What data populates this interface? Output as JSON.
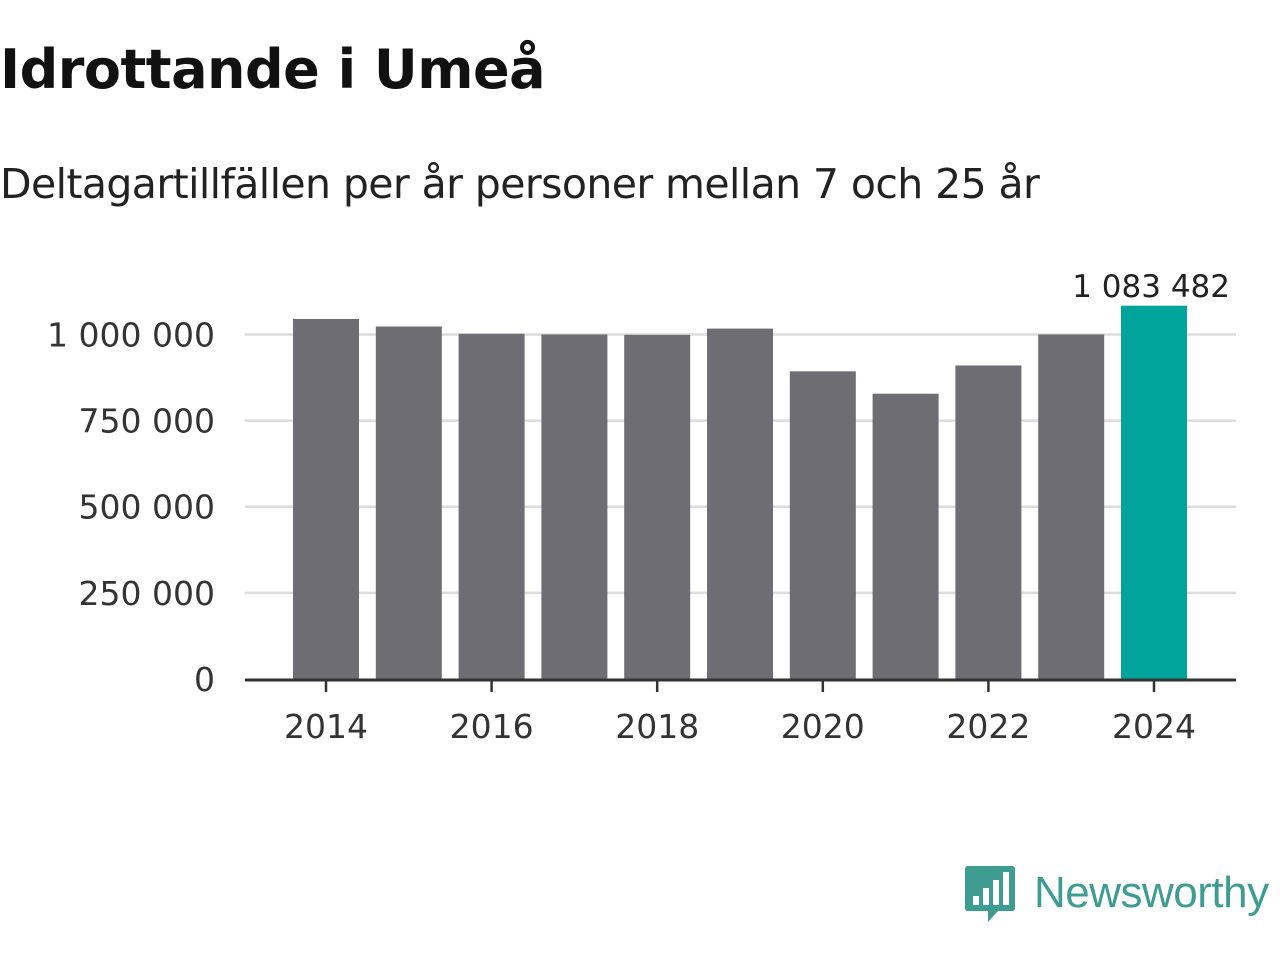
{
  "title": "Idrottande i Umeå",
  "subtitle": "Deltagartillfällen per år personer mellan 7 och 25 år",
  "brand": {
    "name": "Newsworthy",
    "icon": "bar-chart-speech-bubble-icon",
    "color": "#3e9c91"
  },
  "chart_data": {
    "type": "bar",
    "title": "Idrottande i Umeå",
    "subtitle": "Deltagartillfällen per år personer mellan 7 och 25 år",
    "categories": [
      "2014",
      "2015",
      "2016",
      "2017",
      "2018",
      "2019",
      "2020",
      "2021",
      "2022",
      "2023",
      "2024"
    ],
    "values": [
      1045000,
      1023000,
      1002000,
      1000000,
      999000,
      1017000,
      893000,
      828000,
      910000,
      1000000,
      1083482
    ],
    "bar_color": "#6e6d73",
    "highlight_color": "#00a49a",
    "highlight_index": 10,
    "highlight_label": "1 083 482",
    "ylim": [
      0,
      1100000
    ],
    "yticks": [
      0,
      250000,
      500000,
      750000,
      1000000
    ],
    "ytick_labels": [
      "0",
      "250 000",
      "500 000",
      "750 000",
      "1 000 000"
    ],
    "xticks": [
      "2014",
      "2016",
      "2018",
      "2020",
      "2022",
      "2024"
    ],
    "xlabel": "",
    "ylabel": "",
    "grid": true
  }
}
